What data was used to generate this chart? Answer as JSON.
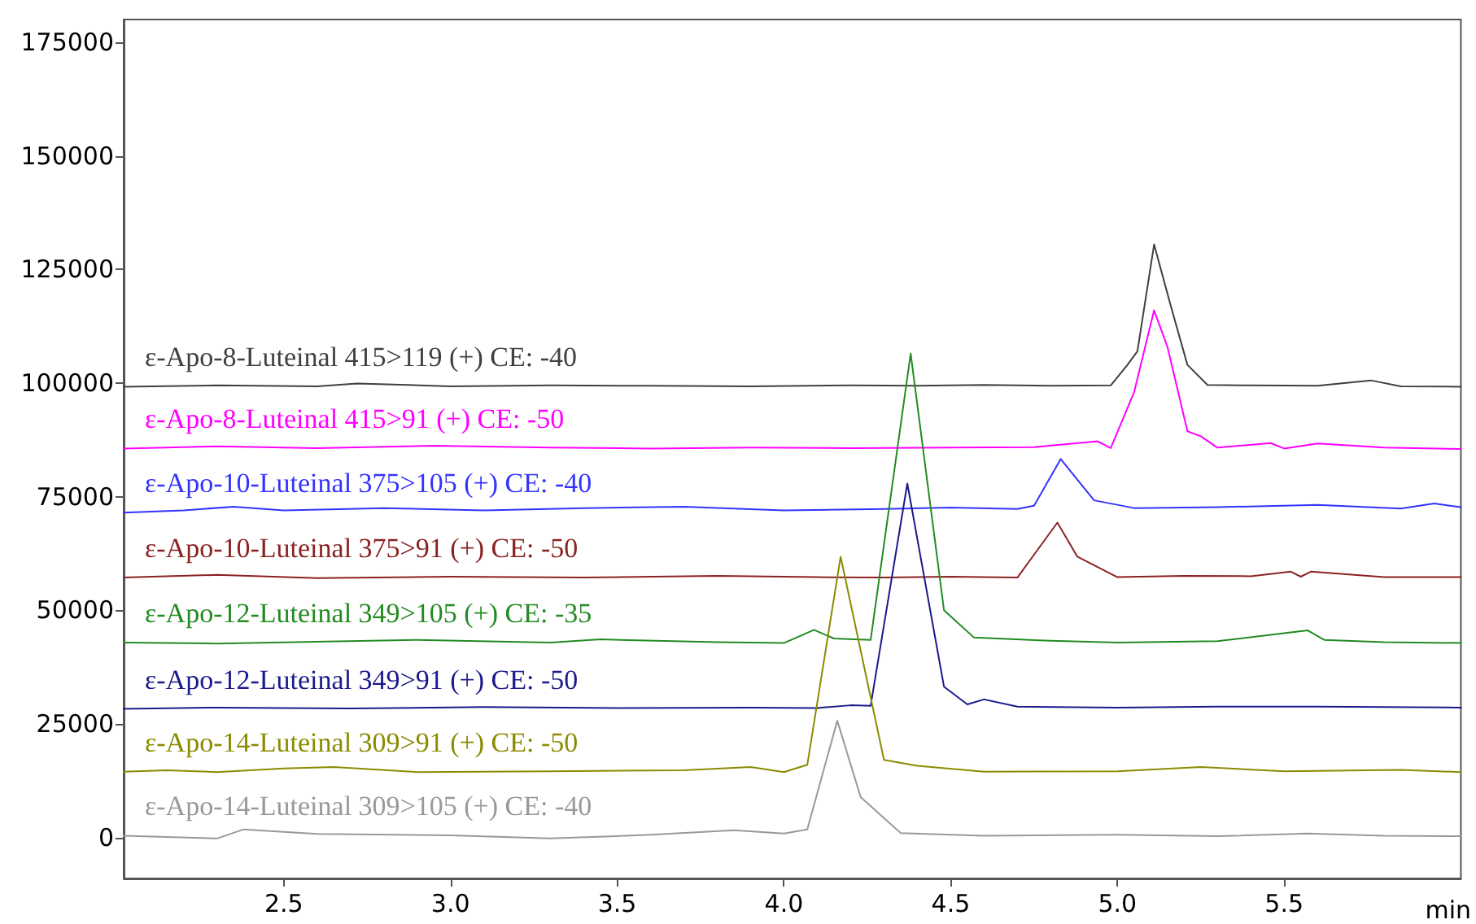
{
  "chart_data": {
    "type": "line",
    "xlabel": "min",
    "xlim": [
      2.02,
      6.03
    ],
    "xticks": [
      2.5,
      {
        "value": 3,
        "label": "3.0"
      },
      3.5,
      {
        "value": 4,
        "label": "4.0"
      },
      4.5,
      {
        "value": 5,
        "label": "5.0"
      },
      5.5
    ],
    "ylim": [
      -9000,
      180000
    ],
    "yticks": [
      0,
      25000,
      50000,
      75000,
      100000,
      125000,
      150000,
      175000
    ],
    "grid": false,
    "marker": "none",
    "line_style": "solid",
    "series": [
      {
        "name": "ε-Apo-8-Luteinal 415>119 (+) CE: -40",
        "color": "#404040",
        "x": [
          2.02,
          2.3,
          2.6,
          2.72,
          3.0,
          3.3,
          3.6,
          3.9,
          4.2,
          4.4,
          4.6,
          4.8,
          4.98,
          5.03,
          5.06,
          5.11,
          5.16,
          5.21,
          5.27,
          5.4,
          5.6,
          5.76,
          5.85,
          6.03
        ],
        "values": [
          99200,
          99500,
          99300,
          99900,
          99300,
          99500,
          99400,
          99300,
          99500,
          99400,
          99600,
          99400,
          99500,
          104000,
          107000,
          130500,
          117000,
          104000,
          99600,
          99500,
          99400,
          100600,
          99300,
          99200
        ]
      },
      {
        "name": "ε-Apo-8-Luteinal 415>91 (+) CE: -50",
        "color": "#ff00ff",
        "x": [
          2.02,
          2.3,
          2.6,
          2.95,
          3.3,
          3.6,
          3.9,
          4.2,
          4.5,
          4.75,
          4.94,
          4.98,
          5.05,
          5.11,
          5.15,
          5.21,
          5.25,
          5.3,
          5.46,
          5.5,
          5.6,
          5.8,
          6.03
        ],
        "values": [
          85600,
          86100,
          85700,
          86200,
          85800,
          85600,
          85800,
          85700,
          85800,
          85900,
          87200,
          85700,
          98000,
          116000,
          108000,
          89400,
          88300,
          85800,
          86800,
          85600,
          86700,
          85800,
          85500
        ]
      },
      {
        "name": "ε-Apo-10-Luteinal 375>105 (+) CE: -40",
        "color": "#3333ff",
        "x": [
          2.02,
          2.2,
          2.35,
          2.5,
          2.8,
          3.1,
          3.4,
          3.7,
          4.0,
          4.3,
          4.5,
          4.7,
          4.75,
          4.83,
          4.93,
          5.05,
          5.3,
          5.6,
          5.85,
          5.95,
          6.03
        ],
        "values": [
          71500,
          72000,
          72800,
          72000,
          72500,
          72000,
          72500,
          72800,
          72000,
          72300,
          72600,
          72300,
          73000,
          83300,
          74200,
          72500,
          72700,
          73200,
          72400,
          73500,
          72700
        ]
      },
      {
        "name": "ε-Apo-10-Luteinal 375>91 (+) CE: -50",
        "color": "#8b2222",
        "x": [
          2.02,
          2.3,
          2.6,
          3.0,
          3.4,
          3.8,
          4.1,
          4.3,
          4.5,
          4.7,
          4.82,
          4.88,
          5.0,
          5.2,
          5.4,
          5.52,
          5.55,
          5.58,
          5.8,
          6.03
        ],
        "values": [
          57200,
          57800,
          57100,
          57400,
          57200,
          57600,
          57300,
          57200,
          57400,
          57200,
          69300,
          61800,
          57300,
          57600,
          57500,
          58500,
          57400,
          58500,
          57300,
          57300
        ]
      },
      {
        "name": "ε-Apo-12-Luteinal 349>105 (+) CE: -35",
        "color": "#228b22",
        "x": [
          2.02,
          2.3,
          2.9,
          3.3,
          3.45,
          3.8,
          4.0,
          4.09,
          4.15,
          4.26,
          4.38,
          4.48,
          4.57,
          4.8,
          5.0,
          5.3,
          5.57,
          5.62,
          5.8,
          6.03
        ],
        "values": [
          42900,
          42700,
          43500,
          42900,
          43600,
          43000,
          42800,
          45700,
          43800,
          43500,
          106500,
          50000,
          44000,
          43300,
          42900,
          43200,
          45600,
          43500,
          43000,
          42800
        ]
      },
      {
        "name": "ε-Apo-12-Luteinal 349>91 (+) CE: -50",
        "color": "#1a1a8c",
        "x": [
          2.02,
          2.3,
          2.7,
          3.1,
          3.5,
          3.9,
          4.1,
          4.2,
          4.26,
          4.37,
          4.48,
          4.55,
          4.6,
          4.7,
          5.0,
          5.3,
          5.6,
          6.03
        ],
        "values": [
          28300,
          28600,
          28400,
          28700,
          28500,
          28600,
          28500,
          29100,
          29000,
          77900,
          33200,
          29300,
          30400,
          28800,
          28600,
          28800,
          28800,
          28600
        ]
      },
      {
        "name": "ε-Apo-14-Luteinal 309>91 (+) CE: -50",
        "color": "#8b8b00",
        "x": [
          2.02,
          2.15,
          2.3,
          2.5,
          2.65,
          2.9,
          3.3,
          3.7,
          3.9,
          4.0,
          4.07,
          4.17,
          4.3,
          4.4,
          4.6,
          5.0,
          5.25,
          5.5,
          5.85,
          6.03
        ],
        "values": [
          14500,
          14800,
          14400,
          15200,
          15500,
          14400,
          14600,
          14800,
          15500,
          14400,
          16000,
          61800,
          17100,
          15800,
          14500,
          14600,
          15500,
          14600,
          14900,
          14400
        ]
      },
      {
        "name": "ε-Apo-14-Luteinal 309>105 (+) CE: -40",
        "color": "#999999",
        "x": [
          2.02,
          2.3,
          2.38,
          2.6,
          3.0,
          3.3,
          3.6,
          3.85,
          4.0,
          4.07,
          4.16,
          4.23,
          4.35,
          4.6,
          5.0,
          5.3,
          5.57,
          5.8,
          6.03
        ],
        "values": [
          400,
          -200,
          1800,
          800,
          500,
          -200,
          600,
          1600,
          900,
          1800,
          25700,
          8900,
          1000,
          400,
          600,
          300,
          900,
          400,
          300
        ]
      }
    ]
  }
}
